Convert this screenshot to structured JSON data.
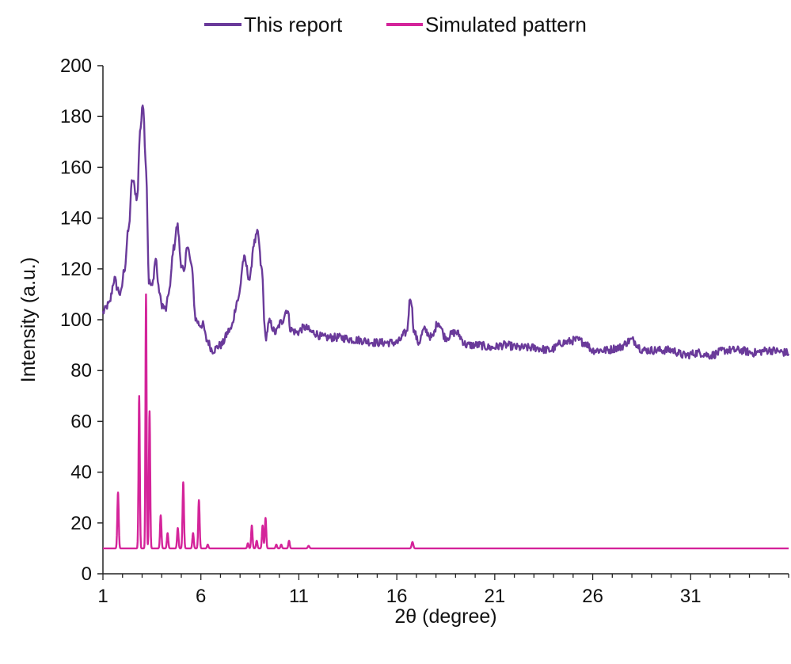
{
  "chart_data": {
    "type": "line",
    "title": "",
    "xlabel": "2θ (degree)",
    "ylabel": "Intensity (a.u.)",
    "xlim": [
      1,
      36
    ],
    "ylim": [
      0,
      200
    ],
    "x_ticks": [
      1,
      6,
      11,
      16,
      21,
      26,
      31
    ],
    "y_ticks": [
      0,
      20,
      40,
      60,
      80,
      100,
      120,
      140,
      160,
      180,
      200
    ],
    "grid": false,
    "legend_position": "top",
    "series": [
      {
        "name": "This report",
        "color": "#6a3a9a",
        "x": [
          1.0,
          1.3,
          1.6,
          1.75,
          1.9,
          2.1,
          2.3,
          2.5,
          2.75,
          2.9,
          3.05,
          3.2,
          3.35,
          3.5,
          3.7,
          3.85,
          4.0,
          4.2,
          4.4,
          4.6,
          4.8,
          5.0,
          5.15,
          5.3,
          5.5,
          5.75,
          5.95,
          6.1,
          6.3,
          6.6,
          7.0,
          7.5,
          7.9,
          8.2,
          8.5,
          8.7,
          8.9,
          9.1,
          9.3,
          9.5,
          9.8,
          10.1,
          10.4,
          10.6,
          10.9,
          11.3,
          11.7,
          12.3,
          13.0,
          14.0,
          15.0,
          16.0,
          16.5,
          16.7,
          16.9,
          17.1,
          17.4,
          17.8,
          18.1,
          18.5,
          19.0,
          19.6,
          20.2,
          20.8,
          21.5,
          22.3,
          23.0,
          23.8,
          24.5,
          25.2,
          25.6,
          26.0,
          26.7,
          27.3,
          28.0,
          28.6,
          29.3,
          30.0,
          30.7,
          31.4,
          32.0,
          32.8,
          33.5,
          34.2,
          35.0,
          36.0
        ],
        "y": [
          103,
          106,
          116,
          112,
          110,
          120,
          135,
          155,
          148,
          175,
          185,
          160,
          115,
          113,
          124,
          112,
          106,
          104,
          112,
          128,
          137,
          122,
          118,
          130,
          122,
          100,
          98,
          98,
          92,
          88,
          90,
          96,
          108,
          124,
          116,
          130,
          134,
          120,
          93,
          99,
          95,
          99,
          104,
          96,
          95,
          97,
          95,
          93,
          93,
          92,
          91,
          91,
          95,
          109,
          95,
          91,
          96,
          93,
          99,
          93,
          95,
          90,
          90,
          89,
          90,
          89,
          89,
          88,
          91,
          92,
          91,
          88,
          88,
          89,
          92,
          88,
          88,
          88,
          86,
          87,
          86,
          88,
          88,
          87,
          88,
          87
        ]
      },
      {
        "name": "Simulated pattern",
        "color": "#d4249a",
        "baseline": 10,
        "peaks": [
          {
            "x": 1.77,
            "y": 32,
            "w": 0.05
          },
          {
            "x": 2.85,
            "y": 70,
            "w": 0.045
          },
          {
            "x": 3.2,
            "y": 110,
            "w": 0.04
          },
          {
            "x": 3.38,
            "y": 64,
            "w": 0.045
          },
          {
            "x": 3.95,
            "y": 23,
            "w": 0.05
          },
          {
            "x": 4.3,
            "y": 16,
            "w": 0.05
          },
          {
            "x": 4.82,
            "y": 18,
            "w": 0.05
          },
          {
            "x": 5.1,
            "y": 36,
            "w": 0.05
          },
          {
            "x": 5.6,
            "y": 16,
            "w": 0.05
          },
          {
            "x": 5.9,
            "y": 29,
            "w": 0.05
          },
          {
            "x": 6.35,
            "y": 11.5,
            "w": 0.05
          },
          {
            "x": 8.4,
            "y": 12,
            "w": 0.05
          },
          {
            "x": 8.6,
            "y": 19,
            "w": 0.05
          },
          {
            "x": 8.85,
            "y": 13,
            "w": 0.05
          },
          {
            "x": 9.15,
            "y": 19,
            "w": 0.05
          },
          {
            "x": 9.3,
            "y": 22,
            "w": 0.05
          },
          {
            "x": 9.85,
            "y": 11.5,
            "w": 0.05
          },
          {
            "x": 10.1,
            "y": 11.5,
            "w": 0.05
          },
          {
            "x": 10.5,
            "y": 13,
            "w": 0.05
          },
          {
            "x": 11.5,
            "y": 11,
            "w": 0.06
          },
          {
            "x": 16.8,
            "y": 12.5,
            "w": 0.06
          }
        ]
      }
    ]
  }
}
